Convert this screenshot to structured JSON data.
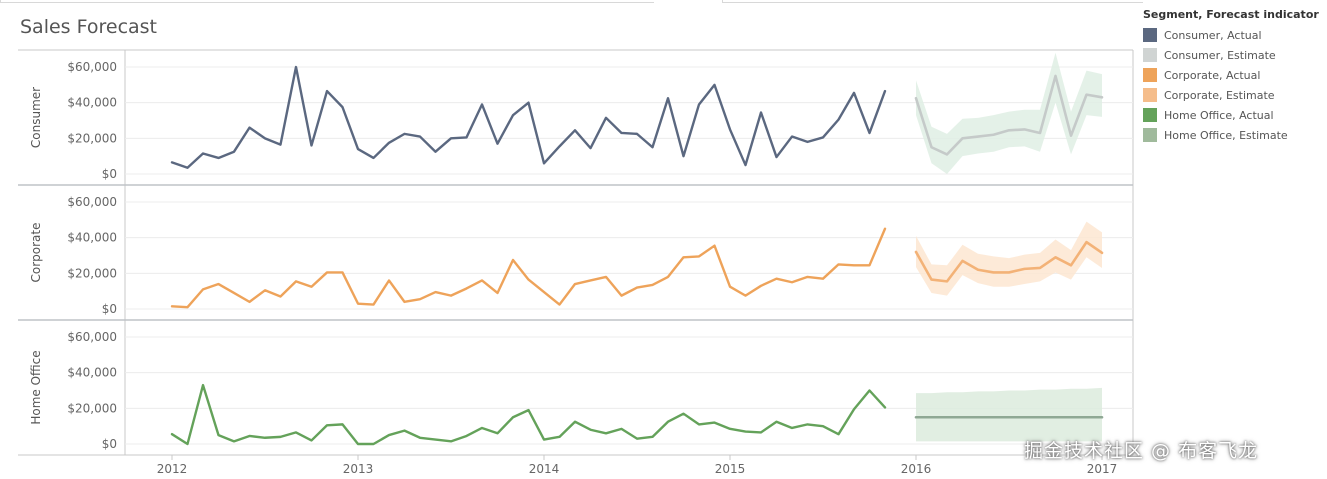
{
  "title": "Sales Forecast",
  "legend": {
    "title": "Segment, Forecast indicator",
    "items": [
      {
        "label": "Consumer, Actual",
        "color": "#5b6880",
        "kind": "actual"
      },
      {
        "label": "Consumer, Estimate",
        "color": "#c8cccb",
        "kind": "estimate"
      },
      {
        "label": "Corporate, Actual",
        "color": "#eea35a",
        "kind": "actual"
      },
      {
        "label": "Corporate, Estimate",
        "color": "#f3b277",
        "kind": "estimate"
      },
      {
        "label": "Home Office, Actual",
        "color": "#64a25a",
        "kind": "actual"
      },
      {
        "label": "Home Office, Estimate",
        "color": "#8fae8b",
        "kind": "estimate"
      }
    ]
  },
  "watermark": "掘金技术社区 @ 布客飞龙",
  "chart_data": {
    "type": "line",
    "x_ticks": [
      "2012",
      "2013",
      "2014",
      "2015",
      "2016",
      "2017"
    ],
    "x_range": [
      "2012-01",
      "2017-01"
    ],
    "y_ticks": [
      "$60,000",
      "$40,000",
      "$20,000",
      "$0"
    ],
    "y_range": [
      0,
      60000
    ],
    "grid": true,
    "legend_position": "right",
    "panels": [
      {
        "row_label": "Consumer",
        "actual_color": "#5b6880",
        "estimate_color": "#c5cac9",
        "band_color": "#dfeee4",
        "actual_start": "2012-01",
        "actual": [
          6500,
          3500,
          11500,
          9000,
          12500,
          26000,
          20000,
          16500,
          60000,
          16000,
          46500,
          37500,
          14000,
          9000,
          17500,
          22500,
          21000,
          12500,
          20000,
          20500,
          39000,
          17000,
          33000,
          40000,
          6000,
          15500,
          24500,
          14500,
          31500,
          23000,
          22500,
          15000,
          42500,
          10000,
          39000,
          50000,
          25000,
          5000,
          34500,
          9500,
          21000,
          18000,
          20500,
          30500,
          45500,
          23000,
          46500
        ],
        "estimate_start": "2016-01",
        "estimate": [
          42500,
          15000,
          11000,
          20000,
          21000,
          22000,
          24500,
          25000,
          23000,
          55000,
          21500,
          44500,
          43000
        ],
        "band_low": [
          33000,
          6000,
          0,
          10000,
          11500,
          12500,
          15000,
          15500,
          12500,
          40000,
          11000,
          33000,
          32000
        ],
        "band_high": [
          52500,
          26500,
          22500,
          31000,
          31500,
          33000,
          35000,
          36000,
          36000,
          68000,
          35000,
          58000,
          56000
        ]
      },
      {
        "row_label": "Corporate",
        "actual_color": "#eea35a",
        "estimate_color": "#f3b277",
        "band_color": "#fde6d1",
        "actual_start": "2012-01",
        "actual": [
          1500,
          1000,
          11000,
          14000,
          9000,
          4000,
          10500,
          7000,
          15500,
          12500,
          20500,
          20500,
          3000,
          2500,
          16000,
          4000,
          5500,
          9500,
          7500,
          11500,
          16000,
          9000,
          27500,
          16500,
          9500,
          2500,
          14000,
          16000,
          18000,
          7500,
          12000,
          13500,
          18000,
          29000,
          29500,
          35500,
          12500,
          7500,
          13000,
          17000,
          15000,
          18000,
          17000,
          25000,
          24500,
          24500,
          45000
        ],
        "estimate_start": "2016-01",
        "estimate": [
          32000,
          16500,
          15500,
          27000,
          22000,
          20500,
          20500,
          22500,
          23000,
          29000,
          24500,
          37500,
          31500
        ],
        "band_low": [
          23500,
          9000,
          7500,
          19000,
          14500,
          12500,
          12500,
          14000,
          15500,
          20500,
          16500,
          29000,
          23000
        ],
        "band_high": [
          41000,
          25000,
          24500,
          36000,
          31000,
          29500,
          28500,
          30500,
          31500,
          39000,
          33000,
          49000,
          43000
        ]
      },
      {
        "row_label": "Home Office",
        "actual_color": "#64a25a",
        "estimate_color": "#8fa894",
        "band_color": "#dcebdd",
        "actual_start": "2012-01",
        "actual": [
          5500,
          0,
          33000,
          5000,
          1500,
          4500,
          3500,
          4000,
          6500,
          2000,
          10500,
          11000,
          0,
          0,
          5000,
          7500,
          3500,
          2500,
          1500,
          4500,
          9000,
          6000,
          15000,
          19000,
          2500,
          4000,
          12500,
          8000,
          6000,
          8500,
          3000,
          4000,
          12500,
          17000,
          11000,
          12000,
          8500,
          7000,
          6500,
          12500,
          9000,
          11000,
          10000,
          5500,
          19500,
          30000,
          20500
        ],
        "estimate_start": "2016-01",
        "estimate": [
          15000,
          15000,
          15000,
          15000,
          15000,
          15000,
          15000,
          15000,
          15000,
          15000,
          15000,
          15000,
          15000
        ],
        "band_low": [
          1500,
          1500,
          1500,
          1500,
          1500,
          1500,
          1500,
          1500,
          1500,
          1500,
          1500,
          1500,
          1500
        ],
        "band_high": [
          28500,
          28500,
          29000,
          29000,
          29500,
          29500,
          30000,
          30000,
          30500,
          30500,
          31000,
          31000,
          31500
        ]
      }
    ]
  }
}
